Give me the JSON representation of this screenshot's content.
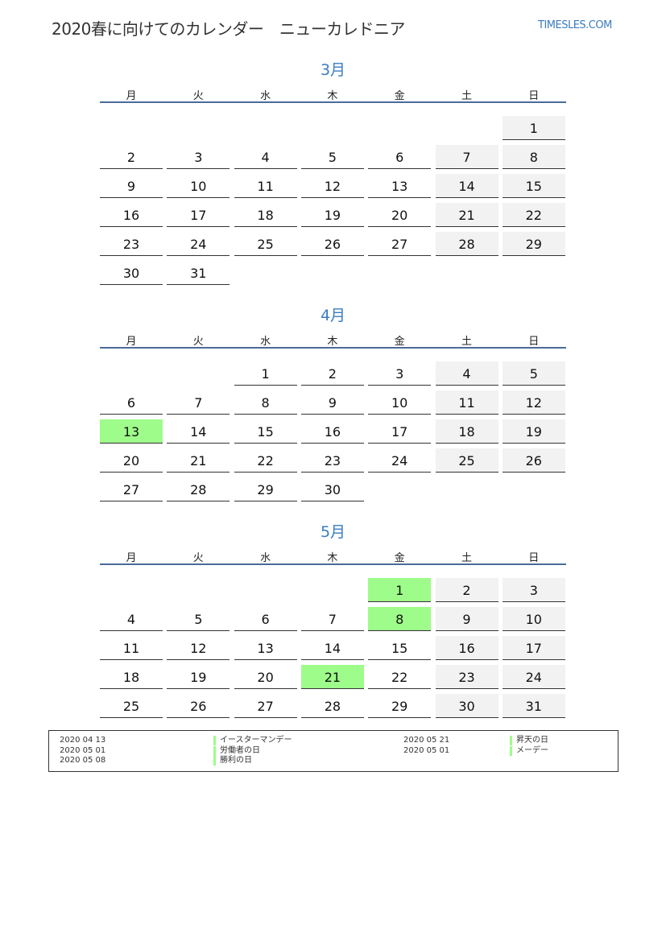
{
  "header": {
    "title": "2020春に向けてのカレンダー　ニューカレドニア",
    "logo": "TIMESLES.COM"
  },
  "weekdays": [
    "月",
    "火",
    "水",
    "木",
    "金",
    "土",
    "日"
  ],
  "colors": {
    "holiday": "#9efc8a",
    "weekend": "#f2f2f2",
    "accent": "#3a7cc0"
  },
  "months": [
    {
      "title": "3月",
      "weeks": [
        [
          null,
          null,
          null,
          null,
          null,
          null,
          1
        ],
        [
          2,
          3,
          4,
          5,
          6,
          7,
          8
        ],
        [
          9,
          10,
          11,
          12,
          13,
          14,
          15
        ],
        [
          16,
          17,
          18,
          19,
          20,
          21,
          22
        ],
        [
          23,
          24,
          25,
          26,
          27,
          28,
          29
        ],
        [
          30,
          31,
          null,
          null,
          null,
          null,
          null
        ]
      ],
      "holidays": []
    },
    {
      "title": "4月",
      "weeks": [
        [
          null,
          null,
          1,
          2,
          3,
          4,
          5
        ],
        [
          6,
          7,
          8,
          9,
          10,
          11,
          12
        ],
        [
          13,
          14,
          15,
          16,
          17,
          18,
          19
        ],
        [
          20,
          21,
          22,
          23,
          24,
          25,
          26
        ],
        [
          27,
          28,
          29,
          30,
          null,
          null,
          null
        ]
      ],
      "holidays": [
        13
      ]
    },
    {
      "title": "5月",
      "weeks": [
        [
          null,
          null,
          null,
          null,
          1,
          2,
          3
        ],
        [
          4,
          5,
          6,
          7,
          8,
          9,
          10
        ],
        [
          11,
          12,
          13,
          14,
          15,
          16,
          17
        ],
        [
          18,
          19,
          20,
          21,
          22,
          23,
          24
        ],
        [
          25,
          26,
          27,
          28,
          29,
          30,
          31
        ]
      ],
      "holidays": [
        1,
        8,
        21
      ]
    }
  ],
  "legend": {
    "left": [
      {
        "date": "2020 04 13",
        "name": "イースターマンデー"
      },
      {
        "date": "2020 05 01",
        "name": "労働者の日"
      },
      {
        "date": "2020 05 08",
        "name": "勝利の日"
      }
    ],
    "right": [
      {
        "date": "2020 05 21",
        "name": "昇天の日"
      },
      {
        "date": "2020 05 01",
        "name": "メーデー"
      }
    ]
  }
}
